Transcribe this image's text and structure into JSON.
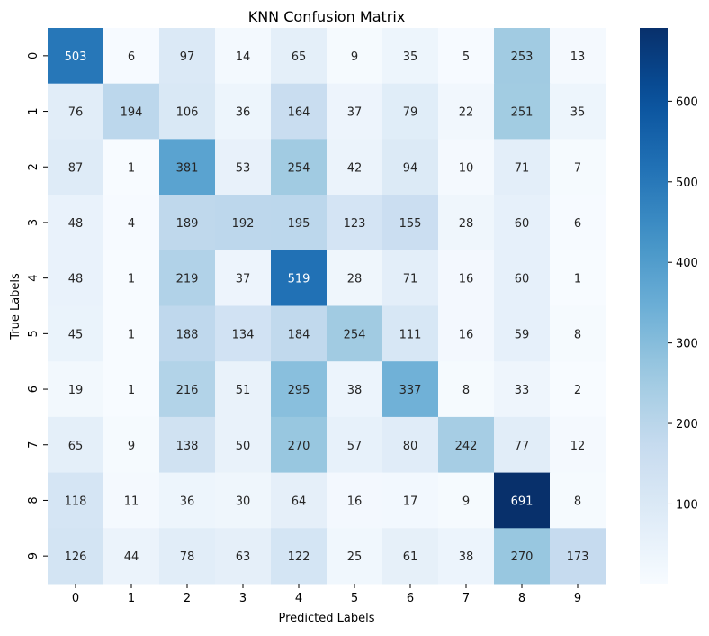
{
  "chart_data": {
    "type": "heatmap",
    "title": "KNN Confusion Matrix",
    "xlabel": "Predicted Labels",
    "ylabel": "True Labels",
    "x_categories": [
      "0",
      "1",
      "2",
      "3",
      "4",
      "5",
      "6",
      "7",
      "8",
      "9"
    ],
    "y_categories": [
      "0",
      "1",
      "2",
      "3",
      "4",
      "5",
      "6",
      "7",
      "8",
      "9"
    ],
    "values": [
      [
        503,
        6,
        97,
        14,
        65,
        9,
        35,
        5,
        253,
        13
      ],
      [
        76,
        194,
        106,
        36,
        164,
        37,
        79,
        22,
        251,
        35
      ],
      [
        87,
        1,
        381,
        53,
        254,
        42,
        94,
        10,
        71,
        7
      ],
      [
        48,
        4,
        189,
        192,
        195,
        123,
        155,
        28,
        60,
        6
      ],
      [
        48,
        1,
        219,
        37,
        519,
        28,
        71,
        16,
        60,
        1
      ],
      [
        45,
        1,
        188,
        134,
        184,
        254,
        111,
        16,
        59,
        8
      ],
      [
        19,
        1,
        216,
        51,
        295,
        38,
        337,
        8,
        33,
        2
      ],
      [
        65,
        9,
        138,
        50,
        270,
        57,
        80,
        242,
        77,
        12
      ],
      [
        118,
        11,
        36,
        30,
        64,
        16,
        17,
        9,
        691,
        8
      ],
      [
        126,
        44,
        78,
        63,
        122,
        25,
        61,
        38,
        270,
        173
      ]
    ],
    "colormap": "Blues",
    "vmin": 1,
    "vmax": 691,
    "colorbar": {
      "ticks": [
        100,
        200,
        300,
        400,
        500,
        600
      ],
      "tick_labels": [
        "100",
        "200",
        "300",
        "400",
        "500",
        "600"
      ]
    },
    "colors": {
      "low": "#f7fbff",
      "high": "#08306b",
      "text_dark": "#262626",
      "text_light": "#ffffff"
    },
    "annotations": true
  }
}
